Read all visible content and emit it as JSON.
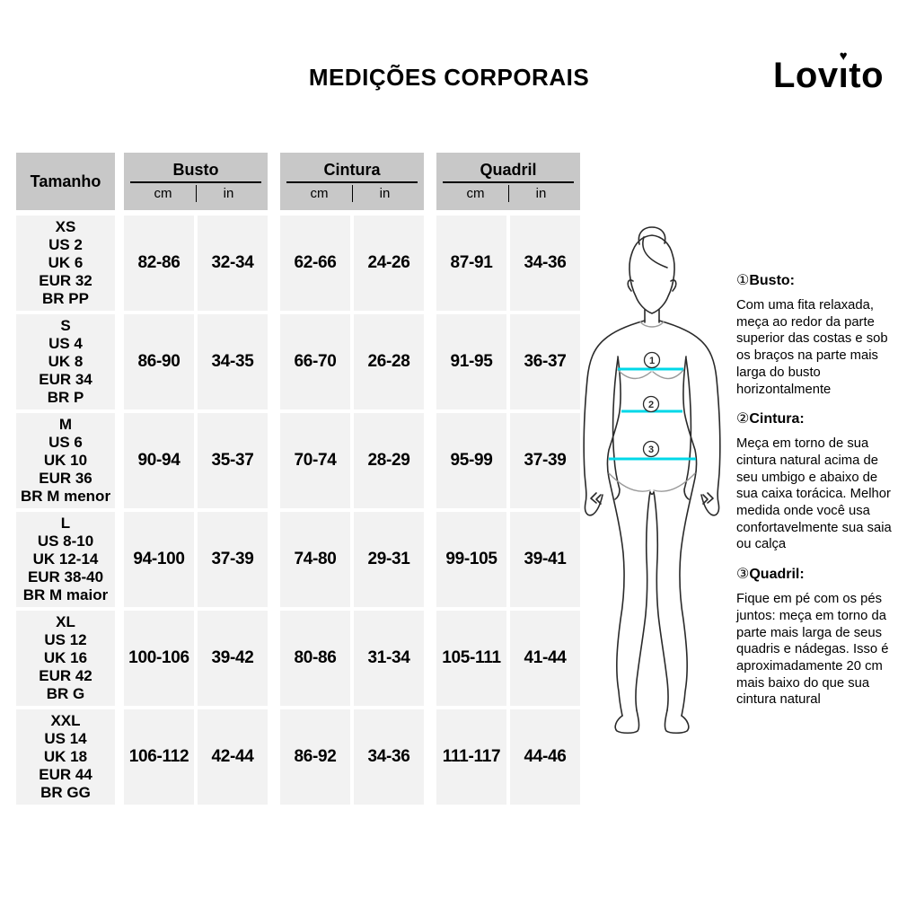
{
  "header": {
    "title": "MEDIÇÕES CORPORAIS",
    "brand": "Lovito"
  },
  "table": {
    "size_col_header": "Tamanho",
    "groups": [
      {
        "label": "Busto",
        "units": [
          "cm",
          "in"
        ]
      },
      {
        "label": "Cintura",
        "units": [
          "cm",
          "in"
        ]
      },
      {
        "label": "Quadril",
        "units": [
          "cm",
          "in"
        ]
      }
    ],
    "rows": [
      {
        "size": "XS\nUS 2\nUK 6\nEUR 32\nBR PP",
        "busto_cm": "82-86",
        "busto_in": "32-34",
        "cintura_cm": "62-66",
        "cintura_in": "24-26",
        "quadril_cm": "87-91",
        "quadril_in": "34-36"
      },
      {
        "size": "S\nUS 4\nUK 8\nEUR 34\nBR P",
        "busto_cm": "86-90",
        "busto_in": "34-35",
        "cintura_cm": "66-70",
        "cintura_in": "26-28",
        "quadril_cm": "91-95",
        "quadril_in": "36-37"
      },
      {
        "size": "M\nUS 6\nUK 10\nEUR 36\nBR M menor",
        "busto_cm": "90-94",
        "busto_in": "35-37",
        "cintura_cm": "70-74",
        "cintura_in": "28-29",
        "quadril_cm": "95-99",
        "quadril_in": "37-39"
      },
      {
        "size": "L\nUS 8-10\nUK 12-14\nEUR 38-40\nBR M maior",
        "busto_cm": "94-100",
        "busto_in": "37-39",
        "cintura_cm": "74-80",
        "cintura_in": "29-31",
        "quadril_cm": "99-105",
        "quadril_in": "39-41"
      },
      {
        "size": "XL\nUS 12\nUK 16\nEUR 42\nBR G",
        "busto_cm": "100-106",
        "busto_in": "39-42",
        "cintura_cm": "80-86",
        "cintura_in": "31-34",
        "quadril_cm": "105-111",
        "quadril_in": "41-44"
      },
      {
        "size": "XXL\nUS 14\nUK 18\nEUR 44\nBR GG",
        "busto_cm": "106-112",
        "busto_in": "42-44",
        "cintura_cm": "86-92",
        "cintura_in": "34-36",
        "quadril_cm": "111-117",
        "quadril_in": "44-46"
      }
    ]
  },
  "figure": {
    "labels": [
      "1",
      "2",
      "3"
    ],
    "line_color": "#00d8e8",
    "outline_color": "#2a2a2a",
    "detail_color": "#9a9a9a"
  },
  "instructions": [
    {
      "num": "①",
      "label": "Busto:",
      "text": "Com uma fita relaxada, meça ao redor da parte superior das costas e sob os braços na parte mais larga do busto horizontalmente"
    },
    {
      "num": "②",
      "label": "Cintura:",
      "text": "Meça em torno de sua cintura natural acima de seu umbigo e abaixo de sua caixa torácica. Melhor medida onde você usa confortavelmente sua saia ou calça"
    },
    {
      "num": "③",
      "label": "Quadril:",
      "text": "Fique em pé com os pés juntos: meça em torno da parte mais larga de seus quadris e nádegas. Isso é aproximadamente 20 cm mais baixo do que sua cintura natural"
    }
  ],
  "colors": {
    "header_cell": "#c8c8c8",
    "data_cell": "#f2f2f2"
  }
}
